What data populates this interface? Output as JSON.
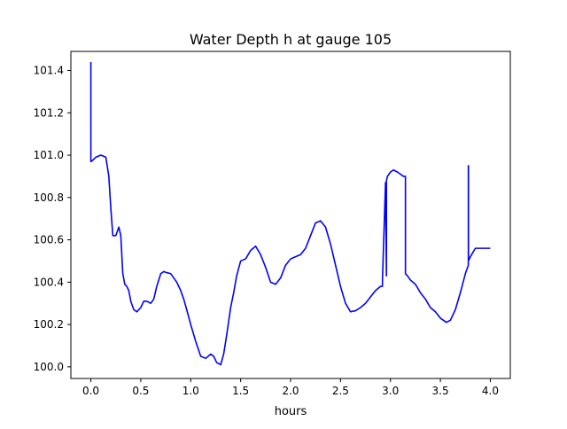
{
  "chart_data": {
    "type": "line",
    "title": "Water Depth h at gauge 105",
    "xlabel": "hours",
    "ylabel": "",
    "xlim": [
      -0.2,
      4.2
    ],
    "ylim": [
      99.945,
      101.49
    ],
    "xticks": [
      0.0,
      0.5,
      1.0,
      1.5,
      2.0,
      2.5,
      3.0,
      3.5,
      4.0
    ],
    "xtick_labels": [
      "0.0",
      "0.5",
      "1.0",
      "1.5",
      "2.0",
      "2.5",
      "3.0",
      "3.5",
      "4.0"
    ],
    "yticks": [
      100.0,
      100.2,
      100.4,
      100.6,
      100.8,
      101.0,
      101.2,
      101.4
    ],
    "ytick_labels": [
      "100.0",
      "100.2",
      "100.4",
      "100.6",
      "100.8",
      "101.0",
      "101.2",
      "101.4"
    ],
    "grid": false,
    "line_color": "#0000ff",
    "series": [
      {
        "x": [
          0.0,
          0.0,
          0.005,
          0.05,
          0.1,
          0.15,
          0.18,
          0.2,
          0.22,
          0.25,
          0.28,
          0.3,
          0.32,
          0.34,
          0.36,
          0.38,
          0.4,
          0.43,
          0.46,
          0.5,
          0.53,
          0.56,
          0.6,
          0.63,
          0.66,
          0.7,
          0.73,
          0.76,
          0.8,
          0.83,
          0.86,
          0.9,
          0.93,
          0.96,
          1.0,
          1.05,
          1.1,
          1.15,
          1.2,
          1.23,
          1.26,
          1.3,
          1.33,
          1.36,
          1.4,
          1.43,
          1.46,
          1.5,
          1.55,
          1.6,
          1.65,
          1.7,
          1.75,
          1.8,
          1.85,
          1.9,
          1.95,
          2.0,
          2.05,
          2.1,
          2.15,
          2.2,
          2.25,
          2.3,
          2.35,
          2.4,
          2.45,
          2.5,
          2.55,
          2.6,
          2.65,
          2.7,
          2.75,
          2.8,
          2.85,
          2.9,
          2.92,
          2.92,
          2.95,
          2.95,
          2.96,
          2.96,
          2.97,
          3.0,
          3.03,
          3.07,
          3.1,
          3.13,
          3.15,
          3.15,
          3.17,
          3.2,
          3.25,
          3.3,
          3.35,
          3.4,
          3.45,
          3.5,
          3.53,
          3.56,
          3.6,
          3.65,
          3.7,
          3.75,
          3.78,
          3.78,
          3.781,
          3.781,
          3.8,
          3.85,
          3.9,
          3.95,
          4.0
        ],
        "y": [
          101.44,
          100.97,
          100.97,
          100.99,
          101.0,
          100.99,
          100.9,
          100.75,
          100.62,
          100.62,
          100.66,
          100.62,
          100.44,
          100.39,
          100.38,
          100.36,
          100.31,
          100.27,
          100.26,
          100.28,
          100.31,
          100.31,
          100.3,
          100.32,
          100.38,
          100.44,
          100.45,
          100.445,
          100.44,
          100.42,
          100.4,
          100.36,
          100.32,
          100.27,
          100.2,
          100.12,
          100.05,
          100.04,
          100.06,
          100.05,
          100.02,
          100.01,
          100.06,
          100.15,
          100.28,
          100.35,
          100.43,
          100.5,
          100.51,
          100.55,
          100.57,
          100.53,
          100.47,
          100.4,
          100.39,
          100.42,
          100.48,
          100.51,
          100.52,
          100.53,
          100.56,
          100.62,
          100.68,
          100.69,
          100.66,
          100.58,
          100.48,
          100.38,
          100.3,
          100.26,
          100.265,
          100.28,
          100.3,
          100.33,
          100.36,
          100.38,
          100.38,
          100.41,
          100.86,
          100.87,
          100.43,
          100.88,
          100.9,
          100.92,
          100.93,
          100.92,
          100.91,
          100.9,
          100.9,
          100.44,
          100.43,
          100.41,
          100.39,
          100.35,
          100.32,
          100.28,
          100.26,
          100.23,
          100.22,
          100.21,
          100.22,
          100.27,
          100.35,
          100.44,
          100.48,
          100.95,
          100.95,
          100.5,
          100.52,
          100.56,
          100.56,
          100.56,
          100.56
        ]
      }
    ]
  }
}
